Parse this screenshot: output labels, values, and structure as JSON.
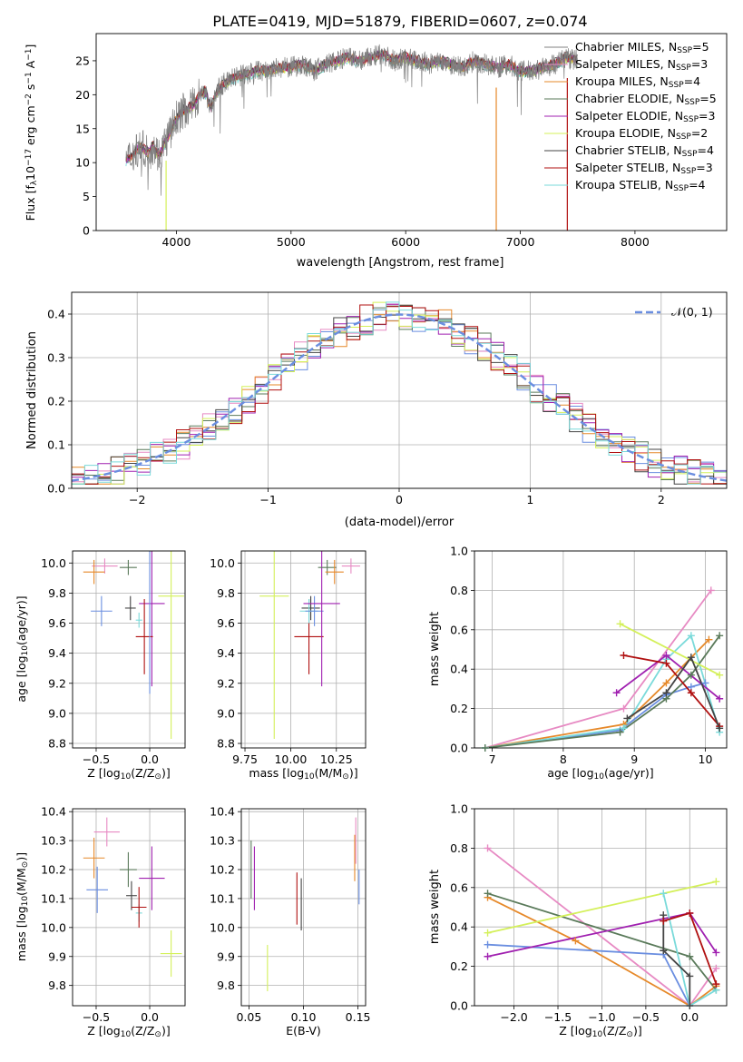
{
  "figure_title": "PLATE=0419, MJD=51879, FIBERID=0607, z=0.074",
  "colors": {
    "Chabrier MILES": "#808080",
    "Salpeter MILES": "#e78ac3",
    "Kroupa MILES": "#e6892a",
    "Chabrier ELODIE": "#5a7a5a",
    "Salpeter ELODIE": "#a020b0",
    "Kroupa ELODIE": "#d4f05a",
    "Chabrier STELIB": "#444444",
    "Salpeter STELIB": "#b01010",
    "Kroupa STELIB": "#7adada",
    "blue": "#6a8ee0",
    "normal_curve": "#6a8ee0"
  },
  "chart_data": [
    {
      "id": "spectrum",
      "type": "line",
      "xlabel": "wavelength [Angstrom, rest frame]",
      "ylabel_text": "Flux [f",
      "ylabel_sub": "λ",
      "ylabel_mid": "10",
      "ylabel_sup1": "−17",
      "ylabel_tail": " erg cm",
      "ylabel_sup2": "−2",
      "ylabel_tail2": " s",
      "ylabel_sup3": "−1",
      "ylabel_tail3": " A",
      "ylabel_sup4": "−1",
      "ylabel_end": "]",
      "xlim": [
        3300,
        8800
      ],
      "ylim": [
        0,
        29
      ],
      "xticks": [
        4000,
        5000,
        6000,
        7000,
        8000
      ],
      "yticks": [
        0,
        5,
        10,
        15,
        20,
        25
      ],
      "legend_position": "upper-right",
      "legend": [
        {
          "label": "Chabrier MILES, N",
          "sub": "SSP",
          "tail": "=5",
          "key": "Chabrier MILES"
        },
        {
          "label": "Salpeter MILES, N",
          "sub": "SSP",
          "tail": "=3",
          "key": "Salpeter MILES"
        },
        {
          "label": "Kroupa MILES, N",
          "sub": "SSP",
          "tail": "=4",
          "key": "Kroupa MILES"
        },
        {
          "label": "Chabrier ELODIE, N",
          "sub": "SSP",
          "tail": "=5",
          "key": "Chabrier ELODIE"
        },
        {
          "label": "Salpeter ELODIE, N",
          "sub": "SSP",
          "tail": "=3",
          "key": "Salpeter ELODIE"
        },
        {
          "label": "Kroupa ELODIE, N",
          "sub": "SSP",
          "tail": "=2",
          "key": "Kroupa ELODIE"
        },
        {
          "label": "Chabrier STELIB, N",
          "sub": "SSP",
          "tail": "=4",
          "key": "Chabrier STELIB"
        },
        {
          "label": "Salpeter STELIB, N",
          "sub": "SSP",
          "tail": "=3",
          "key": "Salpeter STELIB"
        },
        {
          "label": "Kroupa STELIB, N",
          "sub": "SSP",
          "tail": "=4",
          "key": "Kroupa STELIB"
        }
      ],
      "envelope": [
        [
          3560,
          10.5
        ],
        [
          3600,
          10.8
        ],
        [
          3650,
          12.0
        ],
        [
          3700,
          12.2
        ],
        [
          3750,
          11.5
        ],
        [
          3800,
          12.5
        ],
        [
          3850,
          11.0
        ],
        [
          3900,
          13.0
        ],
        [
          3950,
          14.5
        ],
        [
          4000,
          16.5
        ],
        [
          4050,
          17.5
        ],
        [
          4100,
          18.0
        ],
        [
          4150,
          18.5
        ],
        [
          4200,
          20.0
        ],
        [
          4250,
          20.5
        ],
        [
          4300,
          18.0
        ],
        [
          4350,
          20.5
        ],
        [
          4400,
          21.5
        ],
        [
          4450,
          22.0
        ],
        [
          4500,
          22.5
        ],
        [
          4600,
          23.0
        ],
        [
          4700,
          23.5
        ],
        [
          4800,
          23.5
        ],
        [
          4900,
          24.0
        ],
        [
          5000,
          24.0
        ],
        [
          5100,
          24.5
        ],
        [
          5200,
          23.5
        ],
        [
          5300,
          24.5
        ],
        [
          5400,
          25.0
        ],
        [
          5500,
          25.5
        ],
        [
          5600,
          25.0
        ],
        [
          5700,
          25.5
        ],
        [
          5800,
          26.0
        ],
        [
          5900,
          25.0
        ],
        [
          6000,
          25.5
        ],
        [
          6100,
          25.0
        ],
        [
          6200,
          24.5
        ],
        [
          6300,
          25.0
        ],
        [
          6400,
          24.5
        ],
        [
          6500,
          24.0
        ],
        [
          6600,
          25.0
        ],
        [
          6700,
          24.5
        ],
        [
          6800,
          24.0
        ],
        [
          6900,
          24.5
        ],
        [
          7000,
          23.5
        ],
        [
          7100,
          23.5
        ],
        [
          7200,
          24.0
        ],
        [
          7300,
          24.5
        ],
        [
          7400,
          25.5
        ],
        [
          7500,
          25.0
        ]
      ],
      "deep_dips": [
        [
          3910,
          0
        ],
        [
          6790,
          0
        ],
        [
          7410,
          0
        ]
      ]
    },
    {
      "id": "residuals",
      "type": "area",
      "xlabel": "(data-model)/error",
      "ylabel": "Normed distribution",
      "xlim": [
        -2.5,
        2.5
      ],
      "ylim": [
        0,
        0.45
      ],
      "xticks": [
        -2,
        -1,
        0,
        1,
        2
      ],
      "xtick_labels": [
        "−2",
        "−1",
        "0",
        "1",
        "2"
      ],
      "yticks": [
        0.0,
        0.1,
        0.2,
        0.3,
        0.4
      ],
      "ytick_labels": [
        "0.0",
        "0.1",
        "0.2",
        "0.3",
        "0.4"
      ],
      "grid": true,
      "legend_label": "𝒩(0, 1)",
      "legend_position": "upper-right"
    },
    {
      "id": "age_vs_Z",
      "type": "scatter",
      "xlabel": "Z [log",
      "xlabel_sub": "10",
      "xlabel_tail": "(Z/Z",
      "xlabel_sub2": "⊙",
      "xlabel_end": ")]",
      "ylabel": "age  [log",
      "ylabel_sub": "10",
      "ylabel_tail": "(age/yr)]",
      "xlim": [
        -0.72,
        0.33
      ],
      "ylim": [
        8.77,
        10.08
      ],
      "xticks": [
        -0.5,
        0.0
      ],
      "xtick_labels": [
        "−0.5",
        "0.0"
      ],
      "yticks": [
        8.8,
        9.0,
        9.2,
        9.4,
        9.6,
        9.8,
        10.0
      ],
      "ytick_labels": [
        "8.8",
        "9.0",
        "9.2",
        "9.4",
        "9.6",
        "9.8",
        "10.0"
      ],
      "points": [
        {
          "key": "blue",
          "x": -0.45,
          "y": 9.68,
          "xerr": 0.1,
          "yerr": 0.1
        },
        {
          "key": "Salpeter MILES",
          "x": -0.42,
          "y": 9.98,
          "xerr": 0.12,
          "yerr": 0.05
        },
        {
          "key": "Kroupa MILES",
          "x": -0.52,
          "y": 9.94,
          "xerr": 0.1,
          "yerr": 0.08
        },
        {
          "key": "Chabrier ELODIE",
          "x": -0.2,
          "y": 9.97,
          "xerr": 0.08,
          "yerr": 0.05
        },
        {
          "key": "Chabrier STELIB",
          "x": -0.18,
          "y": 9.7,
          "xerr": 0.05,
          "yerr": 0.08
        },
        {
          "key": "Kroupa STELIB",
          "x": -0.1,
          "y": 9.62,
          "xerr": 0.03,
          "yerr": 0.05
        },
        {
          "key": "Salpeter ELODIE",
          "x": 0.02,
          "y": 9.73,
          "xerr": 0.12,
          "yerr": 0.55
        },
        {
          "key": "Salpeter STELIB",
          "x": -0.05,
          "y": 9.51,
          "xerr": 0.08,
          "yerr": 0.25
        },
        {
          "key": "Kroupa ELODIE",
          "x": 0.2,
          "y": 9.78,
          "xerr": 0.12,
          "yerr": 0.95
        },
        {
          "key": "blue2",
          "x": 0.0,
          "y": 9.73,
          "xerr": 0.0,
          "yerr": 0.6
        }
      ]
    },
    {
      "id": "age_vs_mass",
      "type": "scatter",
      "xlabel": "mass [log",
      "xlabel_sub": "10",
      "xlabel_tail": "(M/M",
      "xlabel_sub2": "⊙",
      "xlabel_end": ")]",
      "xlim": [
        9.73,
        10.41
      ],
      "ylim": [
        8.77,
        10.08
      ],
      "xticks": [
        9.75,
        10.0,
        10.25
      ],
      "xtick_labels": [
        "9.75",
        "10.00",
        "10.25"
      ],
      "yticks": [
        8.8,
        9.0,
        9.2,
        9.4,
        9.6,
        9.8,
        10.0
      ],
      "ytick_labels": [
        "8.8",
        "9.0",
        "9.2",
        "9.4",
        "9.6",
        "9.8",
        "10.0"
      ],
      "points": [
        {
          "key": "Kroupa ELODIE",
          "x": 9.91,
          "y": 9.78,
          "xerr": 0.08,
          "yerr": 0.95
        },
        {
          "key": "Salpeter STELIB",
          "x": 10.1,
          "y": 9.51,
          "xerr": 0.08,
          "yerr": 0.25
        },
        {
          "key": "Chabrier STELIB",
          "x": 10.11,
          "y": 9.7,
          "xerr": 0.05,
          "yerr": 0.08
        },
        {
          "key": "Kroupa STELIB",
          "x": 10.1,
          "y": 9.68,
          "xerr": 0.05,
          "yerr": 0.08
        },
        {
          "key": "blue",
          "x": 10.13,
          "y": 9.68,
          "xerr": 0.05,
          "yerr": 0.1
        },
        {
          "key": "Salpeter ELODIE",
          "x": 10.17,
          "y": 9.73,
          "xerr": 0.1,
          "yerr": 0.55
        },
        {
          "key": "Chabrier ELODIE",
          "x": 10.2,
          "y": 9.97,
          "xerr": 0.05,
          "yerr": 0.05
        },
        {
          "key": "Kroupa MILES",
          "x": 10.24,
          "y": 9.94,
          "xerr": 0.05,
          "yerr": 0.08
        },
        {
          "key": "Salpeter MILES",
          "x": 10.33,
          "y": 9.98,
          "xerr": 0.05,
          "yerr": 0.05
        }
      ]
    },
    {
      "id": "weight_vs_age",
      "type": "line",
      "xlabel": "age  [log",
      "xlabel_sub": "10",
      "xlabel_tail": "(age/yr)]",
      "ylabel": "mass weight",
      "xlim": [
        6.75,
        10.3
      ],
      "ylim": [
        0,
        1
      ],
      "xticks": [
        7,
        8,
        9,
        10
      ],
      "xtick_labels": [
        "7",
        "8",
        "9",
        "10"
      ],
      "yticks": [
        0,
        0.2,
        0.4,
        0.6,
        0.8,
        1.0
      ],
      "ytick_labels": [
        "0.0",
        "0.2",
        "0.4",
        "0.6",
        "0.8",
        "1.0"
      ],
      "series": [
        {
          "key": "Salpeter MILES",
          "x": [
            6.9,
            8.85,
            10.08
          ],
          "y": [
            0.0,
            0.2,
            0.8
          ]
        },
        {
          "key": "Kroupa MILES",
          "x": [
            6.9,
            8.85,
            9.45,
            10.05
          ],
          "y": [
            0.0,
            0.12,
            0.33,
            0.55
          ]
        },
        {
          "key": "blue",
          "x": [
            6.9,
            8.8,
            9.45,
            9.8,
            10.0
          ],
          "y": [
            0.0,
            0.09,
            0.27,
            0.31,
            0.33
          ]
        },
        {
          "key": "Kroupa STELIB",
          "x": [
            6.9,
            8.85,
            9.45,
            9.8,
            10.2
          ],
          "y": [
            0.0,
            0.1,
            0.45,
            0.57,
            0.08
          ]
        },
        {
          "key": "Chabrier ELODIE",
          "x": [
            6.9,
            8.8,
            9.45,
            9.8,
            10.2
          ],
          "y": [
            0.0,
            0.08,
            0.25,
            0.37,
            0.57
          ]
        },
        {
          "key": "Kroupa ELODIE",
          "x": [
            8.8,
            10.2
          ],
          "y": [
            0.63,
            0.37
          ]
        },
        {
          "key": "Salpeter ELODIE",
          "x": [
            8.75,
            9.45,
            10.2
          ],
          "y": [
            0.28,
            0.47,
            0.25
          ]
        },
        {
          "key": "Salpeter STELIB",
          "x": [
            8.85,
            9.45,
            9.8,
            10.2
          ],
          "y": [
            0.47,
            0.43,
            0.28,
            0.11
          ]
        },
        {
          "key": "Chabrier STELIB",
          "x": [
            8.9,
            9.45,
            9.8,
            10.2
          ],
          "y": [
            0.15,
            0.28,
            0.46,
            0.1
          ]
        }
      ]
    },
    {
      "id": "mass_vs_Z",
      "type": "scatter",
      "xlabel": "Z [log",
      "xlabel_sub": "10",
      "xlabel_tail": "(Z/Z",
      "xlabel_sub2": "⊙",
      "xlabel_end": ")]",
      "ylabel": "mass [log",
      "ylabel_sub": "10",
      "ylabel_tail": "(M/M",
      "ylabel_sub2": "⊙",
      "ylabel_end": ")]",
      "xlim": [
        -0.72,
        0.33
      ],
      "ylim": [
        9.73,
        10.41
      ],
      "xticks": [
        -0.5,
        0.0
      ],
      "xtick_labels": [
        "−0.5",
        "0.0"
      ],
      "yticks": [
        9.8,
        9.9,
        10.0,
        10.1,
        10.2,
        10.3,
        10.4
      ],
      "ytick_labels": [
        "9.8",
        "9.9",
        "10.0",
        "10.1",
        "10.2",
        "10.3",
        "10.4"
      ],
      "points": [
        {
          "key": "Kroupa MILES",
          "x": -0.52,
          "y": 10.24,
          "xerr": 0.1,
          "yerr": 0.07
        },
        {
          "key": "Salpeter MILES",
          "x": -0.4,
          "y": 10.33,
          "xerr": 0.12,
          "yerr": 0.05
        },
        {
          "key": "blue",
          "x": -0.49,
          "y": 10.13,
          "xerr": 0.1,
          "yerr": 0.08
        },
        {
          "key": "Chabrier ELODIE",
          "x": -0.2,
          "y": 10.2,
          "xerr": 0.08,
          "yerr": 0.06
        },
        {
          "key": "Chabrier STELIB",
          "x": -0.17,
          "y": 10.11,
          "xerr": 0.05,
          "yerr": 0.05
        },
        {
          "key": "Kroupa STELIB",
          "x": -0.1,
          "y": 10.05,
          "xerr": 0.03,
          "yerr": 0.03
        },
        {
          "key": "Salpeter STELIB",
          "x": -0.1,
          "y": 10.07,
          "xerr": 0.07,
          "yerr": 0.07
        },
        {
          "key": "Salpeter ELODIE",
          "x": 0.02,
          "y": 10.17,
          "xerr": 0.12,
          "yerr": 0.11
        },
        {
          "key": "Kroupa ELODIE",
          "x": 0.2,
          "y": 9.91,
          "xerr": 0.1,
          "yerr": 0.08
        }
      ]
    },
    {
      "id": "mass_vs_ebv",
      "type": "scatter",
      "xlabel": "E(B-V)",
      "xlim": [
        0.043,
        0.157
      ],
      "ylim": [
        9.73,
        10.41
      ],
      "xticks": [
        0.05,
        0.1,
        0.15
      ],
      "xtick_labels": [
        "0.05",
        "0.10",
        "0.15"
      ],
      "yticks": [
        9.8,
        9.9,
        10.0,
        10.1,
        10.2,
        10.3,
        10.4
      ],
      "ytick_labels": [
        "9.8",
        "9.9",
        "10.0",
        "10.1",
        "10.2",
        "10.3",
        "10.4"
      ],
      "points": [
        {
          "key": "Chabrier ELODIE",
          "x": 0.052,
          "y": 10.2,
          "xerr": 0.0,
          "yerr": 0.1
        },
        {
          "key": "Salpeter ELODIE",
          "x": 0.055,
          "y": 10.17,
          "xerr": 0.0,
          "yerr": 0.11
        },
        {
          "key": "Kroupa ELODIE",
          "x": 0.067,
          "y": 9.86,
          "xerr": 0.0,
          "yerr": 0.08
        },
        {
          "key": "Salpeter STELIB",
          "x": 0.094,
          "y": 10.1,
          "xerr": 0.0,
          "yerr": 0.09
        },
        {
          "key": "Chabrier STELIB",
          "x": 0.098,
          "y": 10.08,
          "xerr": 0.0,
          "yerr": 0.09
        },
        {
          "key": "Kroupa MILES",
          "x": 0.147,
          "y": 10.24,
          "xerr": 0.0,
          "yerr": 0.08
        },
        {
          "key": "Salpeter MILES",
          "x": 0.148,
          "y": 10.3,
          "xerr": 0.0,
          "yerr": 0.08
        },
        {
          "key": "blue",
          "x": 0.151,
          "y": 10.14,
          "xerr": 0.0,
          "yerr": 0.06
        }
      ]
    },
    {
      "id": "weight_vs_Z",
      "type": "line",
      "xlabel": "Z [log",
      "xlabel_sub": "10",
      "xlabel_tail": "(Z/Z",
      "xlabel_sub2": "⊙",
      "xlabel_end": ")]",
      "ylabel": "mass weight",
      "xlim": [
        -2.45,
        0.42
      ],
      "ylim": [
        0,
        1
      ],
      "xticks": [
        -2.0,
        -1.5,
        -1.0,
        -0.5,
        0.0
      ],
      "xtick_labels": [
        "−2.0",
        "−1.5",
        "−1.0",
        "−0.5",
        "0.0"
      ],
      "yticks": [
        0,
        0.2,
        0.4,
        0.6,
        0.8,
        1.0
      ],
      "ytick_labels": [
        "0.0",
        "0.2",
        "0.4",
        "0.6",
        "0.8",
        "1.0"
      ],
      "series": [
        {
          "key": "Salpeter MILES",
          "x": [
            -2.3,
            0.0,
            0.3
          ],
          "y": [
            0.8,
            0.0,
            0.19
          ]
        },
        {
          "key": "Kroupa MILES",
          "x": [
            -2.3,
            -1.3,
            0.0,
            0.3
          ],
          "y": [
            0.55,
            0.33,
            0.0,
            0.1
          ]
        },
        {
          "key": "Chabrier ELODIE",
          "x": [
            -2.3,
            0.0,
            0.3
          ],
          "y": [
            0.57,
            0.25,
            0.08
          ]
        },
        {
          "key": "Kroupa ELODIE",
          "x": [
            -2.3,
            0.3
          ],
          "y": [
            0.37,
            0.63
          ]
        },
        {
          "key": "blue",
          "x": [
            -2.3,
            -0.3,
            0.0
          ],
          "y": [
            0.31,
            0.26,
            0.0
          ]
        },
        {
          "key": "Salpeter ELODIE",
          "x": [
            -2.3,
            0.0,
            0.3
          ],
          "y": [
            0.25,
            0.47,
            0.27
          ]
        },
        {
          "key": "Kroupa STELIB",
          "x": [
            -0.3,
            0.0,
            0.3
          ],
          "y": [
            0.57,
            0.0,
            0.08
          ]
        },
        {
          "key": "Chabrier STELIB",
          "x": [
            -0.3,
            -0.3,
            0.0,
            0.0
          ],
          "y": [
            0.46,
            0.28,
            0.15,
            0.0
          ]
        },
        {
          "key": "Salpeter STELIB",
          "x": [
            -0.3,
            0.0,
            0.3
          ],
          "y": [
            0.43,
            0.47,
            0.11
          ]
        }
      ]
    }
  ]
}
